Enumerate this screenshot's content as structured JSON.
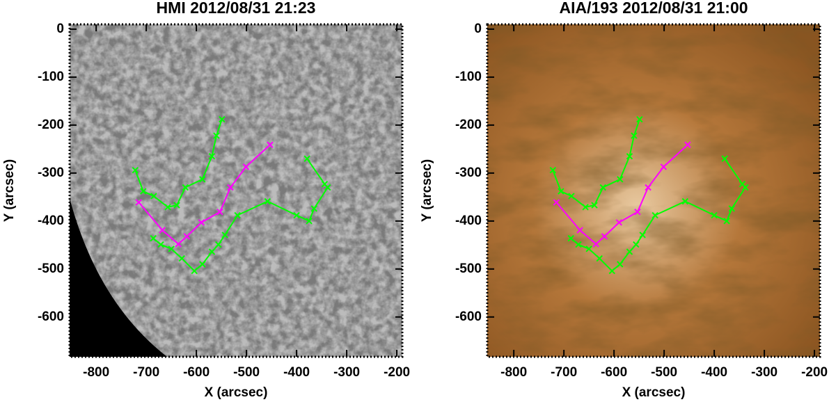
{
  "chart_data": [
    {
      "type": "line",
      "title": "HMI 2012/08/31 21:23",
      "background": "magnetogram",
      "xlabel": "X (arcsec)",
      "ylabel": "Y (arcsec)",
      "xlim": [
        -853,
        -189
      ],
      "ylim": [
        -683,
        10
      ],
      "xticks": [
        -800,
        -700,
        -600,
        -500,
        -400,
        -300,
        -200
      ],
      "yticks": [
        0,
        -100,
        -200,
        -300,
        -400,
        -500,
        -600
      ],
      "series": [
        {
          "color": "#ff00ff",
          "x": [
            -715,
            -668,
            -636,
            -619,
            -590,
            -553,
            -532,
            -501,
            -453
          ],
          "values": [
            -361,
            -419,
            -448,
            -432,
            -403,
            -381,
            -330,
            -287,
            -241
          ]
        },
        {
          "color": "#00ff00",
          "x": [
            -722,
            -706,
            -685,
            -657,
            -639,
            -622,
            -588,
            -569,
            -560,
            -549
          ],
          "values": [
            -294,
            -338,
            -348,
            -371,
            -367,
            -330,
            -313,
            -265,
            -222,
            -188
          ]
        },
        {
          "color": "#00ff00",
          "x": [
            -686,
            -671,
            -650,
            -629,
            -604,
            -588,
            -569,
            -556,
            -543,
            -518,
            -458,
            -400,
            -375,
            -365,
            -338,
            -344,
            -379
          ],
          "values": [
            -436,
            -449,
            -458,
            -478,
            -504,
            -490,
            -464,
            -449,
            -429,
            -388,
            -359,
            -388,
            -400,
            -374,
            -330,
            -323,
            -270
          ]
        }
      ]
    },
    {
      "type": "line",
      "title": "AIA/193 2012/08/31 21:00",
      "background": "euv",
      "xlabel": "X (arcsec)",
      "ylabel": "Y (arcsec)",
      "xlim": [
        -853,
        -189
      ],
      "ylim": [
        -683,
        10
      ],
      "xticks": [
        -800,
        -700,
        -600,
        -500,
        -400,
        -300,
        -200
      ],
      "yticks": [
        0,
        -100,
        -200,
        -300,
        -400,
        -500,
        -600
      ],
      "series": [
        {
          "color": "#ff00ff",
          "x": [
            -715,
            -668,
            -636,
            -619,
            -590,
            -553,
            -532,
            -501,
            -453
          ],
          "values": [
            -361,
            -419,
            -448,
            -432,
            -403,
            -381,
            -330,
            -287,
            -241
          ]
        },
        {
          "color": "#00ff00",
          "x": [
            -722,
            -706,
            -685,
            -657,
            -639,
            -622,
            -588,
            -569,
            -560,
            -549
          ],
          "values": [
            -294,
            -338,
            -348,
            -371,
            -367,
            -330,
            -313,
            -265,
            -222,
            -188
          ]
        },
        {
          "color": "#00ff00",
          "x": [
            -686,
            -671,
            -650,
            -629,
            -604,
            -588,
            -569,
            -556,
            -543,
            -518,
            -458,
            -400,
            -375,
            -365,
            -338,
            -344,
            -379
          ],
          "values": [
            -436,
            -449,
            -458,
            -478,
            -504,
            -490,
            -464,
            -449,
            -429,
            -388,
            -359,
            -388,
            -400,
            -374,
            -330,
            -323,
            -270
          ]
        }
      ]
    }
  ]
}
